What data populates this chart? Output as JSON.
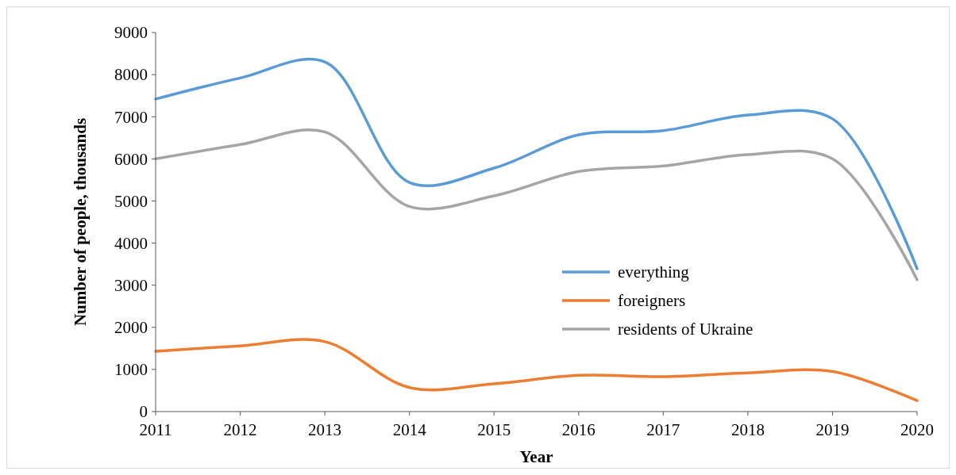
{
  "chart_data": {
    "type": "line",
    "xlabel": "Year",
    "ylabel": "Number of people, thousands",
    "x": [
      2011,
      2012,
      2013,
      2014,
      2015,
      2016,
      2017,
      2018,
      2019,
      2020
    ],
    "xlim": [
      2011,
      2020
    ],
    "xticks": [
      2011,
      2012,
      2013,
      2014,
      2015,
      2016,
      2017,
      2018,
      2019,
      2020
    ],
    "ylim": [
      0,
      9000
    ],
    "yticks": [
      0,
      1000,
      2000,
      3000,
      4000,
      5000,
      6000,
      7000,
      8000,
      9000
    ],
    "grid": false,
    "legend": "right",
    "marker": "none",
    "line_style": "solid",
    "series": [
      {
        "name": "everything",
        "color": "#5b9bd5",
        "values": [
          7420,
          7920,
          8300,
          5440,
          5780,
          6570,
          6670,
          7040,
          6950,
          3390
        ]
      },
      {
        "name": "foreigners",
        "color": "#ed7d31",
        "values": [
          1430,
          1560,
          1660,
          570,
          660,
          860,
          830,
          920,
          950,
          260
        ]
      },
      {
        "name": "residents of Ukraine",
        "color": "#a5a5a5",
        "values": [
          6000,
          6340,
          6640,
          4870,
          5120,
          5700,
          5830,
          6100,
          6000,
          3130
        ]
      }
    ]
  }
}
